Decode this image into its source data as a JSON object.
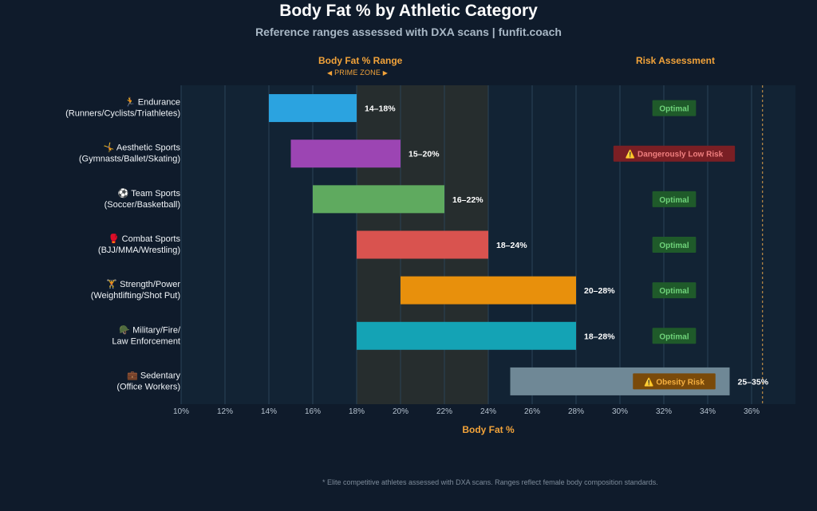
{
  "title": "Body Fat % by Athletic Category",
  "subtitle": "Reference ranges assessed with DXA scans | funfit.coach",
  "headers": {
    "range": "Body Fat % Range",
    "risk": "Risk Assessment",
    "prime_zone": "PRIME ZONE"
  },
  "footnote": "* Elite competitive athletes assessed with DXA scans. Ranges reflect female body composition standards.",
  "chart_data": {
    "type": "bar",
    "orientation": "horizontal-range",
    "xlabel": "Body Fat %",
    "xlim": [
      10,
      38
    ],
    "xticks": [
      10,
      12,
      14,
      16,
      18,
      20,
      22,
      24,
      26,
      28,
      30,
      32,
      34,
      36
    ],
    "xtick_labels": [
      "10%",
      "12%",
      "14%",
      "16%",
      "18%",
      "20%",
      "22%",
      "24%",
      "26%",
      "28%",
      "30%",
      "32%",
      "34%",
      "36%"
    ],
    "prime_zone": [
      18,
      24
    ],
    "risk_threshold": 36.5,
    "grid": true,
    "categories": [
      {
        "icon": "🏃",
        "line1": "Endurance",
        "line2": "(Runners/Cyclists/Triathletes)",
        "low": 14,
        "high": 18,
        "label": "14–18%",
        "color": "#2ba3e0",
        "risk": "Optimal",
        "risk_level": "optimal"
      },
      {
        "icon": "🤸",
        "line1": "Aesthetic Sports",
        "line2": "(Gymnasts/Ballet/Skating)",
        "low": 15,
        "high": 20,
        "label": "15–20%",
        "color": "#9c45b3",
        "risk": "⚠️ Dangerously Low Risk",
        "risk_level": "danger"
      },
      {
        "icon": "⚽",
        "line1": "Team Sports",
        "line2": "(Soccer/Basketball)",
        "low": 16,
        "high": 22,
        "label": "16–22%",
        "color": "#5faa5f",
        "risk": "Optimal",
        "risk_level": "optimal"
      },
      {
        "icon": "🥊",
        "line1": "Combat Sports",
        "line2": "(BJJ/MMA/Wrestling)",
        "low": 18,
        "high": 24,
        "label": "18–24%",
        "color": "#d9534f",
        "risk": "Optimal",
        "risk_level": "optimal"
      },
      {
        "icon": "🏋",
        "line1": "Strength/Power",
        "line2": "(Weightlifting/Shot Put)",
        "low": 20,
        "high": 28,
        "label": "20–28%",
        "color": "#e8900c",
        "risk": "Optimal",
        "risk_level": "optimal"
      },
      {
        "icon": "🪖",
        "line1": "Military/Fire/",
        "line2": "Law Enforcement",
        "low": 18,
        "high": 28,
        "label": "18–28%",
        "color": "#14a3b5",
        "risk": "Optimal",
        "risk_level": "optimal"
      },
      {
        "icon": "💼",
        "line1": "Sedentary",
        "line2": "(Office Workers)",
        "low": 25,
        "high": 35,
        "label": "25–35%",
        "color": "#6f8896",
        "risk": "⚠️ Obesity Risk",
        "risk_level": "warning"
      }
    ],
    "risk_colors": {
      "optimal": {
        "bg": "#1f5a2a",
        "fg": "#6fd37a"
      },
      "danger": {
        "bg": "#7a1f24",
        "fg": "#f07f7f"
      },
      "warning": {
        "bg": "#7a4a0a",
        "fg": "#f5b041"
      }
    }
  }
}
